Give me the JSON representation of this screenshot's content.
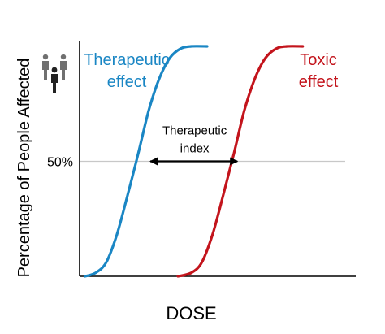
{
  "chart_data": {
    "type": "line",
    "title": "",
    "xlabel": "DOSE",
    "ylabel": "Percentage of People Affected",
    "yticks": [
      {
        "value": 50,
        "label": "50%"
      }
    ],
    "ylim": [
      0,
      100
    ],
    "xlim": [
      0,
      100
    ],
    "grid": false,
    "reference_line": {
      "y": 50
    },
    "series": [
      {
        "name_lines": [
          "Therapeutic",
          "effect"
        ],
        "color": "#1a86c4",
        "x": [
          2,
          6,
          10,
          14,
          18,
          22,
          26,
          30,
          34,
          38,
          42,
          48
        ],
        "y": [
          0,
          1.5,
          6,
          18,
          35,
          53,
          72,
          86,
          95,
          99,
          100,
          100
        ]
      },
      {
        "name_lines": [
          "Toxic",
          "effect"
        ],
        "color": "#c3141c",
        "x": [
          37,
          42,
          46,
          50,
          54,
          58,
          62,
          66,
          70,
          74,
          78,
          84
        ],
        "y": [
          0,
          1.5,
          6,
          18,
          35,
          53,
          72,
          86,
          95,
          99,
          100,
          100
        ]
      }
    ],
    "annotation": {
      "text_lines": [
        "Therapeutic",
        "index"
      ],
      "y": 50,
      "x_from": 26,
      "x_to": 60
    }
  },
  "people_icon": "people-group-icon"
}
